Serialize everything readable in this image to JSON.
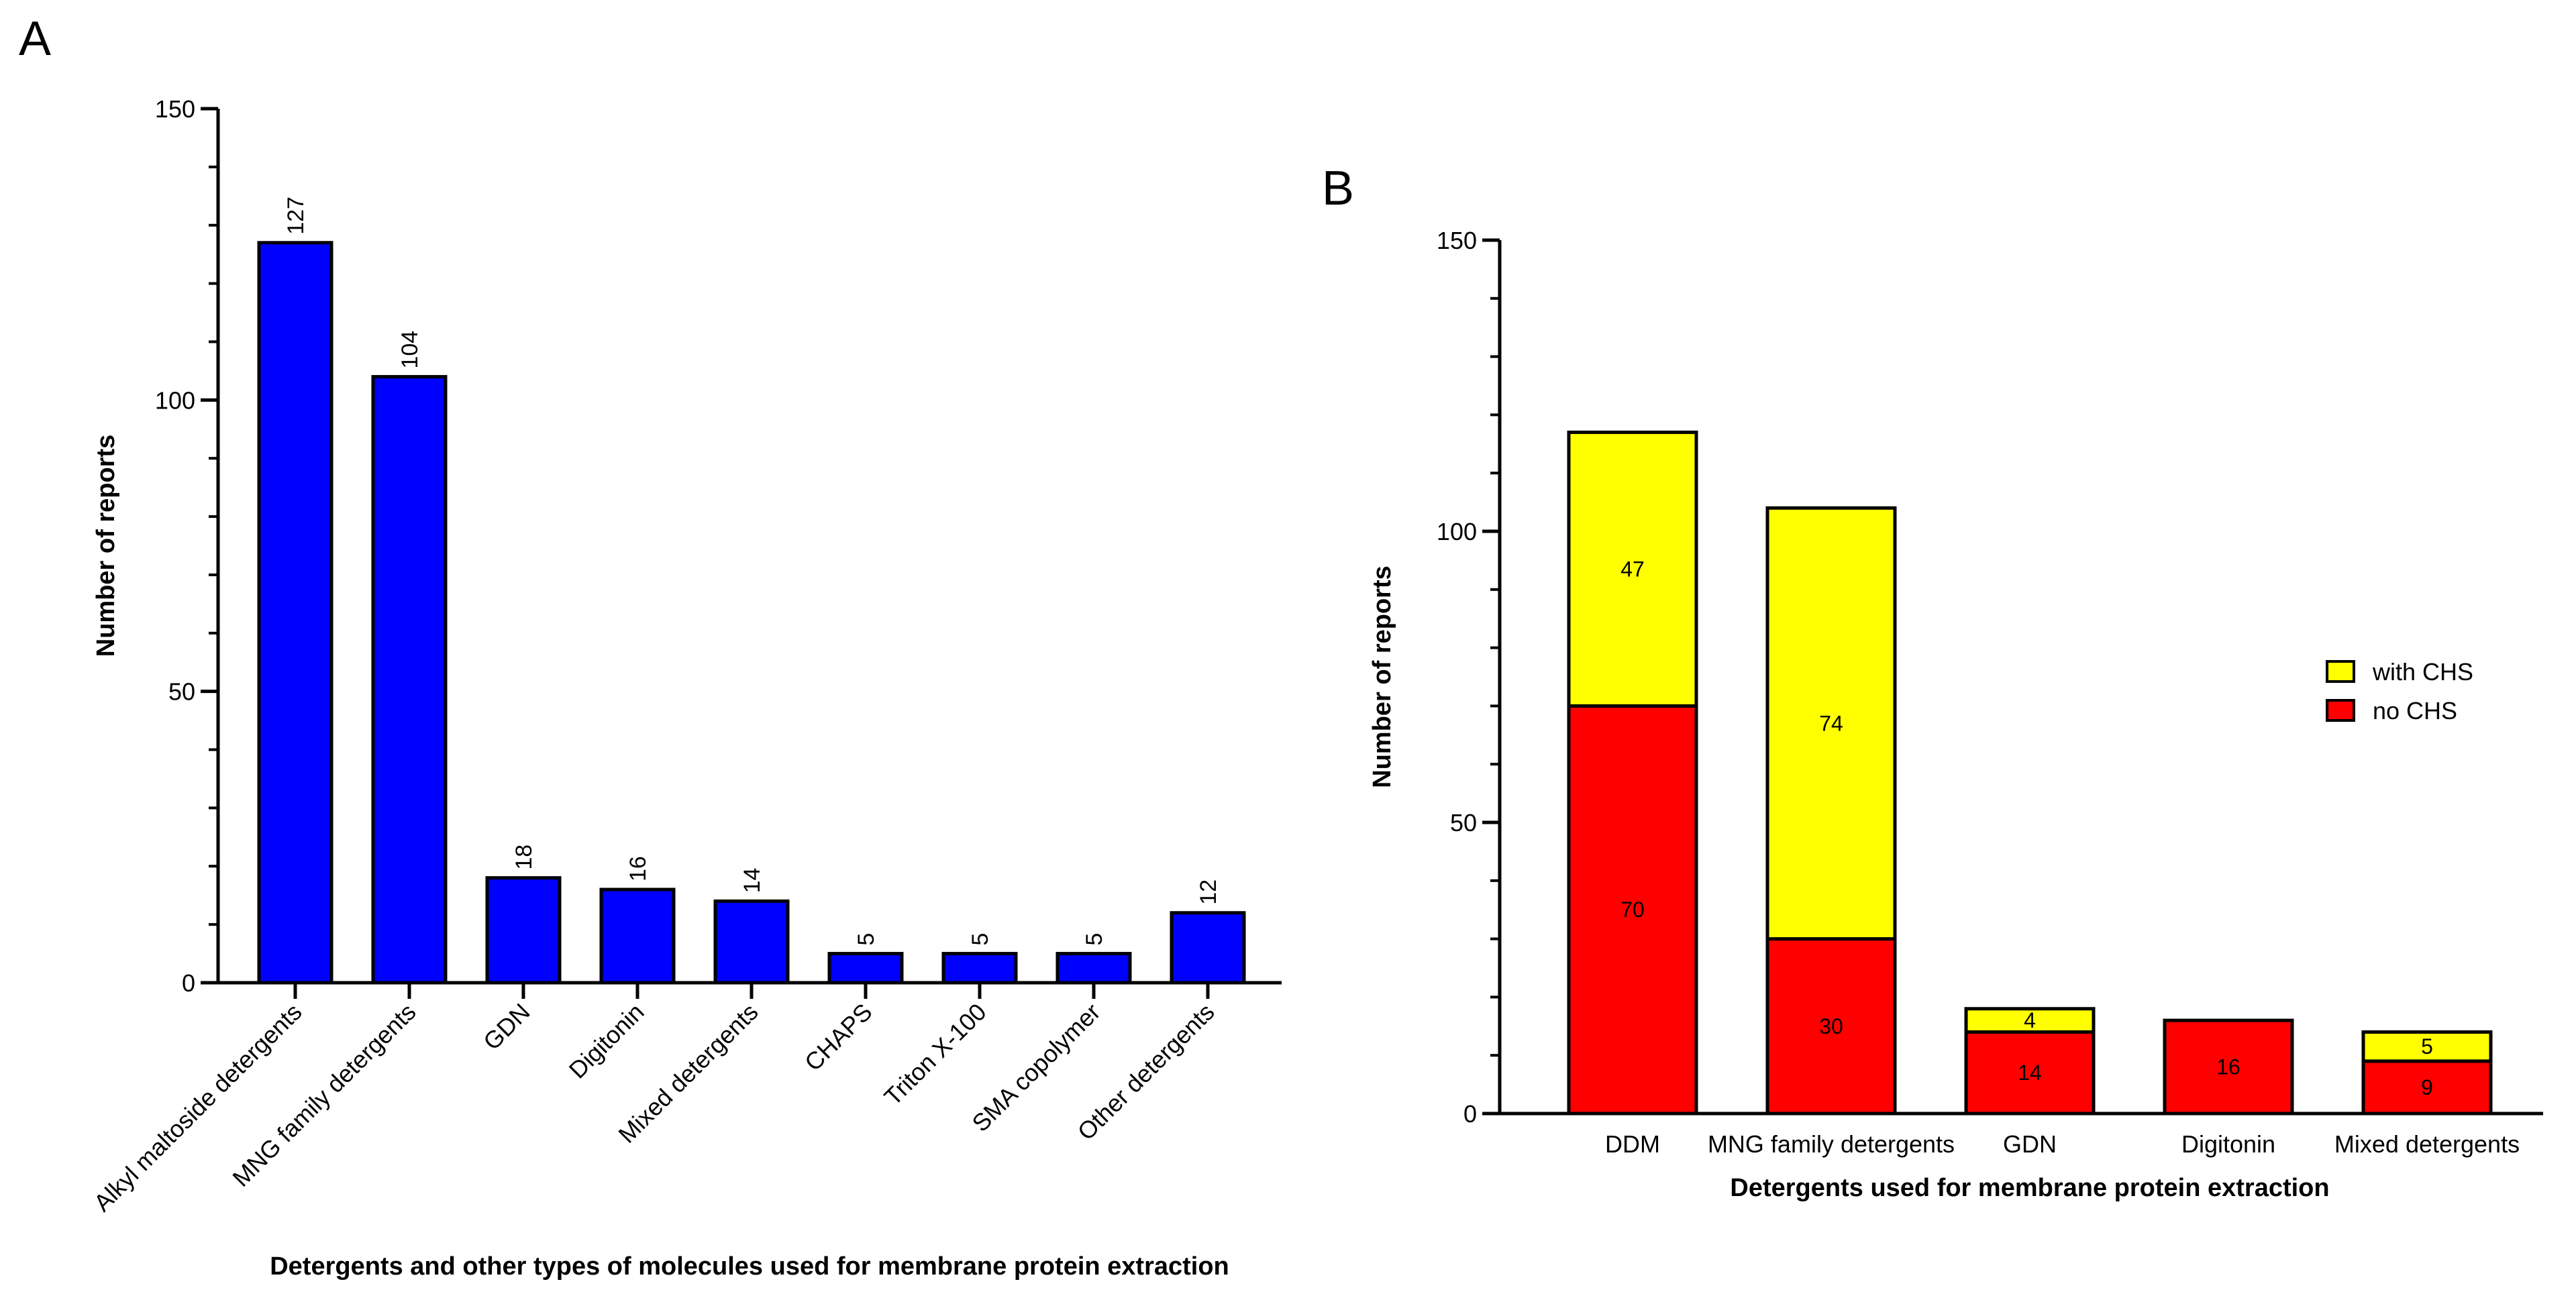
{
  "figure": {
    "panels": [
      "A",
      "B"
    ]
  },
  "chart_data": [
    {
      "panel": "A",
      "type": "bar",
      "title": "",
      "xlabel": "Detergents and other types of molecules used for membrane protein extraction",
      "ylabel": "Number of reports",
      "ylim": [
        0,
        150
      ],
      "yticks": [
        0,
        50,
        100,
        150
      ],
      "categories": [
        "Alkyl maltoside detergents",
        "MNG family detergents",
        "GDN",
        "Digitonin",
        "Mixed detergents",
        "CHAPS",
        "Triton X-100",
        "SMA copolymer",
        "Other detergents"
      ],
      "values": [
        127,
        104,
        18,
        16,
        14,
        5,
        5,
        5,
        12
      ],
      "color": "#0000ff"
    },
    {
      "panel": "B",
      "type": "bar",
      "stacked": true,
      "title": "",
      "xlabel": "Detergents used for membrane protein extraction",
      "ylabel": "Number of reports",
      "ylim": [
        0,
        150
      ],
      "yticks": [
        0,
        50,
        100,
        150
      ],
      "categories": [
        "DDM",
        "MNG family detergents",
        "GDN",
        "Digitonin",
        "Mixed detergents"
      ],
      "series": [
        {
          "name": "no CHS",
          "color": "#ff0000",
          "values": [
            70,
            30,
            14,
            16,
            9
          ]
        },
        {
          "name": "with CHS",
          "color": "#ffff00",
          "values": [
            47,
            74,
            4,
            0,
            5
          ]
        }
      ],
      "legend": [
        "with CHS",
        "no CHS"
      ],
      "legend_position": "right"
    }
  ]
}
